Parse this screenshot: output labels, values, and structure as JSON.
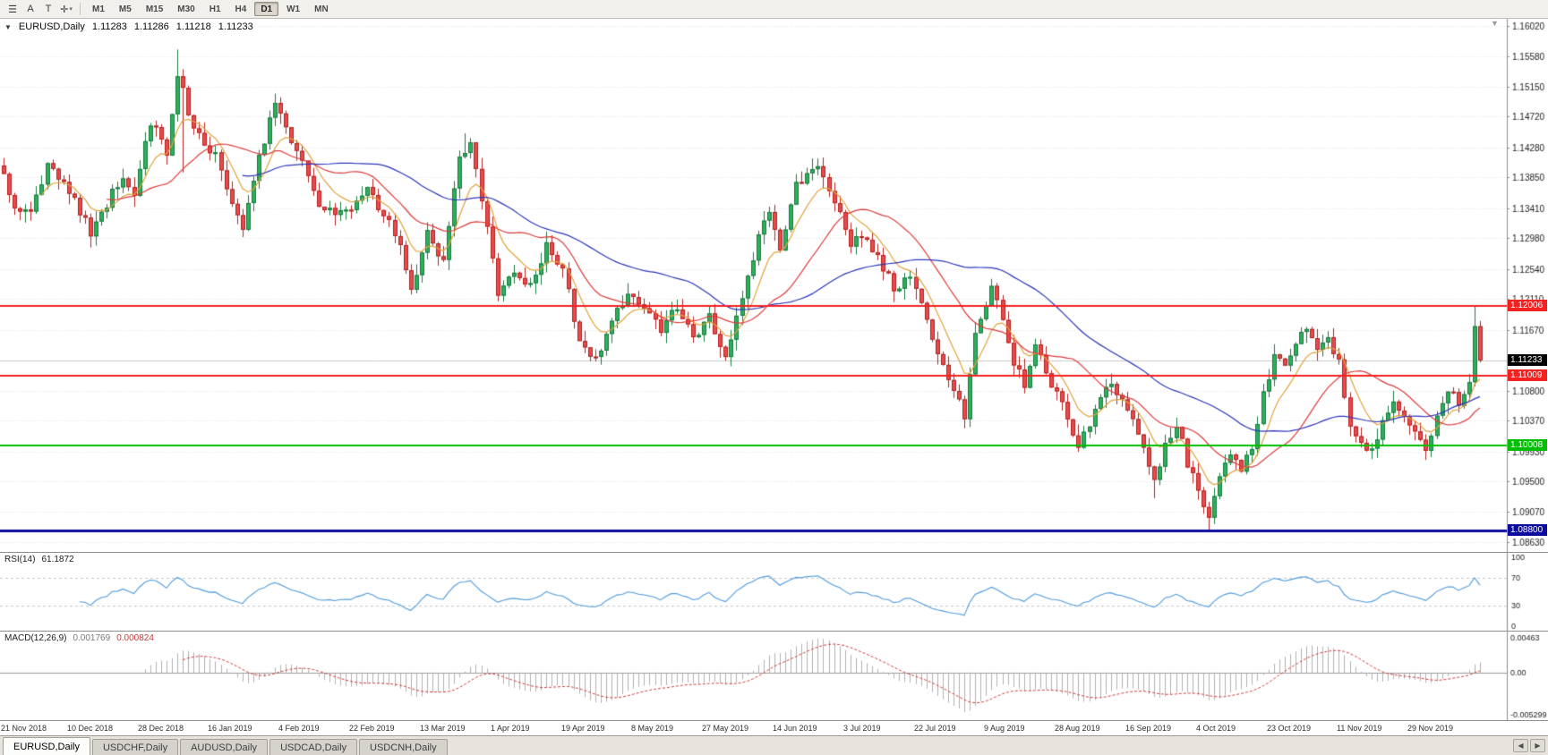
{
  "toolbar": {
    "tools": [
      {
        "name": "menu-icon",
        "glyph": "☰"
      },
      {
        "name": "letter-a-tool",
        "glyph": "A"
      },
      {
        "name": "text-tool",
        "glyph": "T"
      },
      {
        "name": "crosshair-tool",
        "glyph": "✛",
        "caret": "▾"
      }
    ],
    "timeframes": [
      {
        "label": "M1"
      },
      {
        "label": "M5"
      },
      {
        "label": "M15"
      },
      {
        "label": "M30"
      },
      {
        "label": "H1"
      },
      {
        "label": "H4"
      },
      {
        "label": "D1",
        "active": true
      },
      {
        "label": "W1"
      },
      {
        "label": "MN"
      }
    ]
  },
  "header": {
    "collapse_icon": "▼",
    "symbol": "EURUSD,Daily",
    "open": "1.11283",
    "high": "1.11286",
    "low": "1.11218",
    "close": "1.11233",
    "shift_icon": "▼"
  },
  "rsi_panel": {
    "label": "RSI(14)",
    "value": "61.1872"
  },
  "macd_panel": {
    "label": "MACD(12,26,9)",
    "value_main": "0.001769",
    "value_signal": "0.000824"
  },
  "tabs": {
    "items": [
      {
        "label": "EURUSD,Daily",
        "active": true
      },
      {
        "label": "USDCHF,Daily"
      },
      {
        "label": "AUDUSD,Daily"
      },
      {
        "label": "USDCAD,Daily"
      },
      {
        "label": "USDCNH,Daily"
      }
    ],
    "nav_left": "◀",
    "nav_right": "▶"
  },
  "chart_data": {
    "type": "candlestick",
    "symbol": "EURUSD",
    "timeframe": "Daily",
    "current_ohlc": {
      "open": 1.11283,
      "high": 1.11286,
      "low": 1.11218,
      "close": 1.11233
    },
    "num_bars": 273,
    "bars_per_label": 13,
    "noise": 0.0014,
    "y_axis": {
      "min": 1.0849,
      "max": 1.1612,
      "ticks": [
        "1.16020",
        "1.15580",
        "1.15150",
        "1.14720",
        "1.14280",
        "1.13850",
        "1.13410",
        "1.12980",
        "1.12540",
        "1.12110",
        "1.11670",
        "1.10800",
        "1.10370",
        "1.09930",
        "1.09500",
        "1.09070",
        "1.08630"
      ]
    },
    "x_labels": [
      "21 Nov 2018",
      "10 Dec 2018",
      "28 Dec 2018",
      "16 Jan 2019",
      "4 Feb 2019",
      "22 Feb 2019",
      "13 Mar 2019",
      "1 Apr 2019",
      "19 Apr 2019",
      "8 May 2019",
      "27 May 2019",
      "14 Jun 2019",
      "3 Jul 2019",
      "22 Jul 2019",
      "9 Aug 2019",
      "28 Aug 2019",
      "16 Sep 2019",
      "4 Oct 2019",
      "23 Oct 2019",
      "11 Nov 2019",
      "29 Nov 2019"
    ],
    "hlines": [
      {
        "price": 1.12006,
        "label": "1.12006",
        "color": "#f42121",
        "width": 2
      },
      {
        "price": 1.11009,
        "label": "1.11009",
        "color": "#f42121",
        "width": 2
      },
      {
        "price": 1.10008,
        "label": "1.10008",
        "color": "#00bf00",
        "width": 2
      },
      {
        "price": 1.088,
        "label": "1.08800",
        "color": "#0b0b9e",
        "width": 3
      }
    ],
    "last_price": {
      "value": 1.11233,
      "label": "1.11233",
      "box_color": "#000000"
    },
    "price_anchors": [
      [
        0,
        1.139
      ],
      [
        2,
        1.1342
      ],
      [
        5,
        1.133
      ],
      [
        8,
        1.1402
      ],
      [
        11,
        1.1372
      ],
      [
        13,
        1.1352
      ],
      [
        16,
        1.1305
      ],
      [
        19,
        1.1348
      ],
      [
        22,
        1.139
      ],
      [
        24,
        1.1352
      ],
      [
        26,
        1.1442
      ],
      [
        28,
        1.1462
      ],
      [
        30,
        1.1415
      ],
      [
        32,
        1.1535
      ],
      [
        34,
        1.148
      ],
      [
        36,
        1.1442
      ],
      [
        39,
        1.1415
      ],
      [
        41,
        1.1362
      ],
      [
        44,
        1.1312
      ],
      [
        47,
        1.1412
      ],
      [
        50,
        1.1495
      ],
      [
        52,
        1.1452
      ],
      [
        55,
        1.141
      ],
      [
        58,
        1.1348
      ],
      [
        61,
        1.1328
      ],
      [
        64,
        1.1338
      ],
      [
        67,
        1.1368
      ],
      [
        70,
        1.1332
      ],
      [
        73,
        1.1288
      ],
      [
        75,
        1.1222
      ],
      [
        78,
        1.1305
      ],
      [
        81,
        1.1262
      ],
      [
        84,
        1.1415
      ],
      [
        86,
        1.1438
      ],
      [
        88,
        1.1352
      ],
      [
        91,
        1.1222
      ],
      [
        94,
        1.1252
      ],
      [
        97,
        1.1228
      ],
      [
        100,
        1.1288
      ],
      [
        103,
        1.1252
      ],
      [
        106,
        1.1152
      ],
      [
        109,
        1.1122
      ],
      [
        112,
        1.1182
      ],
      [
        115,
        1.1215
      ],
      [
        118,
        1.1196
      ],
      [
        121,
        1.1166
      ],
      [
        124,
        1.1202
      ],
      [
        127,
        1.1156
      ],
      [
        130,
        1.1186
      ],
      [
        133,
        1.1126
      ],
      [
        136,
        1.1212
      ],
      [
        139,
        1.1302
      ],
      [
        141,
        1.1332
      ],
      [
        143,
        1.1282
      ],
      [
        146,
        1.1372
      ],
      [
        149,
        1.1402
      ],
      [
        151,
        1.1392
      ],
      [
        154,
        1.1332
      ],
      [
        156,
        1.1286
      ],
      [
        158,
        1.1302
      ],
      [
        161,
        1.1272
      ],
      [
        164,
        1.1226
      ],
      [
        167,
        1.1246
      ],
      [
        169,
        1.1212
      ],
      [
        171,
        1.1152
      ],
      [
        173,
        1.1122
      ],
      [
        175,
        1.1082
      ],
      [
        177,
        1.1042
      ],
      [
        179,
        1.1162
      ],
      [
        181,
        1.1206
      ],
      [
        182,
        1.1228
      ],
      [
        184,
        1.1186
      ],
      [
        186,
        1.1122
      ],
      [
        188,
        1.1088
      ],
      [
        190,
        1.1152
      ],
      [
        192,
        1.1102
      ],
      [
        194,
        1.1078
      ],
      [
        196,
        1.1042
      ],
      [
        198,
        1.0998
      ],
      [
        200,
        1.1032
      ],
      [
        202,
        1.1068
      ],
      [
        204,
        1.1094
      ],
      [
        206,
        1.1066
      ],
      [
        208,
        1.1036
      ],
      [
        210,
        1.0992
      ],
      [
        212,
        1.0948
      ],
      [
        214,
        1.1002
      ],
      [
        216,
        1.1034
      ],
      [
        218,
        1.0976
      ],
      [
        220,
        1.0938
      ],
      [
        222,
        1.0902
      ],
      [
        224,
        1.0962
      ],
      [
        226,
        1.0986
      ],
      [
        228,
        1.0962
      ],
      [
        230,
        1.1002
      ],
      [
        232,
        1.1072
      ],
      [
        234,
        1.1128
      ],
      [
        236,
        1.1112
      ],
      [
        238,
        1.1152
      ],
      [
        240,
        1.1166
      ],
      [
        242,
        1.1132
      ],
      [
        244,
        1.1152
      ],
      [
        246,
        1.112
      ],
      [
        248,
        1.1032
      ],
      [
        250,
        1.1002
      ],
      [
        252,
        1.0992
      ],
      [
        254,
        1.1035
      ],
      [
        256,
        1.1062
      ],
      [
        258,
        1.104
      ],
      [
        260,
        1.1015
      ],
      [
        262,
        1.0996
      ],
      [
        264,
        1.1042
      ],
      [
        266,
        1.1082
      ],
      [
        268,
        1.106
      ],
      [
        270,
        1.1092
      ],
      [
        271,
        1.1172
      ],
      [
        272,
        1.11233
      ]
    ],
    "special_bars": [
      {
        "i": 32,
        "high": 1.1568
      },
      {
        "i": 33,
        "low": 1.1392
      },
      {
        "i": 85,
        "high": 1.1448
      },
      {
        "i": 150,
        "high": 1.1412
      },
      {
        "i": 177,
        "low": 1.1026
      },
      {
        "i": 212,
        "low": 1.0926
      },
      {
        "i": 222,
        "low": 1.0879
      },
      {
        "i": 271,
        "high": 1.12
      }
    ],
    "moving_averages": [
      {
        "name": "fast-ma",
        "period": 8,
        "method": "ema",
        "color": "#e0a23c"
      },
      {
        "name": "medium-ma",
        "period": 20,
        "method": "sma",
        "color": "#dd3b3b"
      },
      {
        "name": "slow-ma",
        "period": 45,
        "method": "sma",
        "color": "#2d35bb"
      }
    ],
    "candle_colors": {
      "up_fill": "#2fae5d",
      "up_border": "#177a3e",
      "down_fill": "#e84b4b",
      "down_border": "#b22222"
    },
    "grid_color": "#e2e2e2",
    "rsi": {
      "period": 14,
      "current": 61.1872,
      "levels": [
        30,
        70
      ],
      "axis_labels": [
        "100",
        "70",
        "30",
        "0"
      ],
      "line_color": "#4f9add"
    },
    "macd": {
      "fast": 12,
      "slow": 26,
      "signal": 9,
      "current_macd": 0.001769,
      "current_signal": 0.000824,
      "hist_color": "#b0b0b0",
      "signal_color": "#cf3a3a",
      "axis_labels": {
        "top": "0.00463",
        "zero": "0.00",
        "bottom": "-0.005299"
      }
    }
  }
}
